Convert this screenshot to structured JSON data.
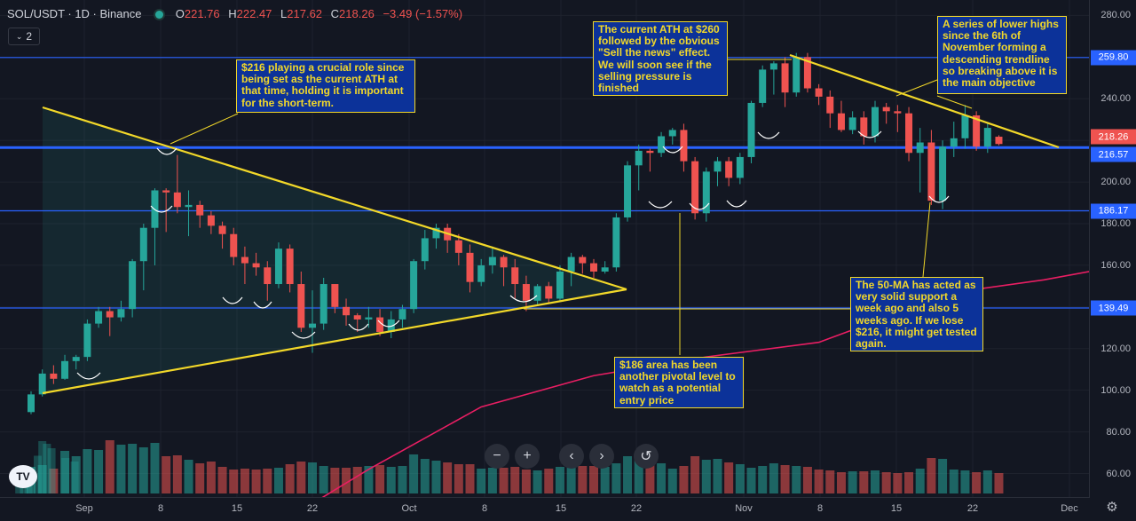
{
  "header": {
    "symbol": "SOL/USDT · 1D · Binance",
    "open_k": "O",
    "open": "221.76",
    "high_k": "H",
    "high": "222.47",
    "low_k": "L",
    "low": "217.62",
    "close_k": "C",
    "close": "218.26",
    "change": "−3.49 (−1.57%)",
    "indicator_count": "2"
  },
  "controls": {
    "zoom_out": "−",
    "zoom_in": "+",
    "scroll_left": "‹",
    "scroll_right": "›",
    "reset": "↺"
  },
  "colors": {
    "background": "#131722",
    "up": "#26a69a",
    "down": "#ef5350",
    "trendline": "#f2d829",
    "hline": "#2962ff",
    "ma": "#e91e63"
  },
  "annotations": [
    "$216 playing a crucial role since being set as the current ATH at that time, holding it is important for the short-term.",
    "The current ATH at $260 followed by the obvious \"Sell the news\" effect. We will soon see if the selling pressure is finished",
    "A series of lower highs since the 6th of November forming a descending trendline so breaking above it is the main objective",
    "The 50-MA has acted as very solid support a week ago and also 5 weeks ago. If we lose $216, it might get tested again.",
    "$186 area has been another pivotal level to watch as a potential entry price"
  ],
  "chart_data": {
    "type": "candlestick",
    "x_ticks": [
      "Sep",
      "8",
      "15",
      "22",
      "Oct",
      "8",
      "15",
      "22",
      "Nov",
      "8",
      "15",
      "22",
      "Dec"
    ],
    "y_ticks": [
      280,
      260,
      240,
      220,
      200,
      180,
      160,
      140,
      120,
      100,
      80,
      60
    ],
    "ylim": [
      53,
      287
    ],
    "price_labels": [
      {
        "value": "259.80",
        "color": "#2962ff"
      },
      {
        "value": "218.26",
        "color": "#ef5350"
      },
      {
        "value": "216.57",
        "color": "#2962ff"
      },
      {
        "value": "186.17",
        "color": "#2962ff"
      },
      {
        "value": "139.49",
        "color": "#2962ff"
      }
    ],
    "horizontal_levels": [
      259.8,
      216.57,
      186.17,
      139.49
    ],
    "ma_50": [
      [
        23,
        39
      ],
      [
        30,
        62
      ],
      [
        40,
        92
      ],
      [
        50,
        107
      ],
      [
        60,
        116
      ],
      [
        70,
        123
      ],
      [
        76,
        135
      ],
      [
        82,
        147
      ],
      [
        90,
        153
      ],
      [
        97,
        160
      ],
      [
        103,
        164
      ],
      [
        110,
        166
      ],
      [
        116,
        170
      ],
      [
        123,
        175
      ],
      [
        130,
        186
      ],
      [
        137,
        193
      ],
      [
        143,
        197
      ],
      [
        150,
        200
      ]
    ],
    "candles": [
      [
        0,
        89.5,
        98,
        99.5,
        88.5
      ],
      [
        1,
        98,
        108,
        110,
        97
      ],
      [
        2,
        108,
        105.5,
        112,
        103
      ],
      [
        3,
        105.5,
        114,
        117,
        105
      ],
      [
        4,
        114,
        116,
        117,
        110
      ],
      [
        5,
        116,
        132,
        134,
        114
      ],
      [
        6,
        132,
        138,
        140,
        130
      ],
      [
        7,
        138,
        135,
        140,
        126
      ],
      [
        8,
        135,
        139,
        143,
        133
      ],
      [
        9,
        139,
        162,
        163,
        135
      ],
      [
        10,
        162,
        178,
        180,
        148
      ],
      [
        11,
        178,
        196,
        197,
        160
      ],
      [
        12,
        196,
        195,
        197,
        176
      ],
      [
        13,
        195,
        188,
        213,
        185
      ],
      [
        14,
        188,
        189,
        196,
        174
      ],
      [
        15,
        189,
        184,
        191,
        178
      ],
      [
        16,
        184,
        179,
        186,
        175
      ],
      [
        17,
        179,
        175,
        181,
        168
      ],
      [
        18,
        175,
        164,
        178,
        160
      ],
      [
        19,
        164,
        161,
        169,
        151
      ],
      [
        20,
        161,
        159,
        166,
        155
      ],
      [
        21,
        159,
        151,
        162,
        143
      ],
      [
        22,
        151,
        168,
        171,
        149
      ],
      [
        23,
        168,
        151,
        170,
        147
      ],
      [
        24,
        151,
        130,
        157,
        128
      ],
      [
        25,
        130,
        132,
        148,
        118
      ],
      [
        26,
        132,
        151,
        154,
        129
      ],
      [
        27,
        151,
        140,
        151,
        137
      ],
      [
        28,
        140,
        136,
        144,
        131
      ],
      [
        29,
        136,
        134,
        137,
        128
      ],
      [
        30,
        134,
        135,
        140,
        130
      ],
      [
        31,
        135,
        128,
        139,
        126
      ],
      [
        32,
        128,
        134,
        138,
        125
      ],
      [
        33,
        134,
        139,
        141,
        130
      ],
      [
        34,
        139,
        162,
        163,
        137
      ],
      [
        35,
        162,
        173,
        177,
        158
      ],
      [
        36,
        173,
        178,
        180,
        168
      ],
      [
        37,
        178,
        172,
        180,
        166
      ],
      [
        38,
        172,
        166,
        175,
        160
      ],
      [
        39,
        166,
        152,
        170,
        147
      ],
      [
        40,
        152,
        160,
        163,
        150
      ],
      [
        41,
        160,
        164,
        169,
        156
      ],
      [
        42,
        164,
        159,
        165,
        150
      ],
      [
        43,
        159,
        151,
        163,
        144
      ],
      [
        44,
        151,
        143,
        155,
        138
      ],
      [
        45,
        143,
        150,
        151,
        141
      ],
      [
        46,
        150,
        144,
        152,
        142
      ],
      [
        47,
        144,
        157,
        160,
        143
      ],
      [
        48,
        157,
        164,
        166,
        150
      ],
      [
        49,
        164,
        161,
        165,
        156
      ],
      [
        50,
        161,
        157,
        163,
        154
      ],
      [
        51,
        157,
        159,
        162,
        156
      ],
      [
        52,
        159,
        183,
        185,
        157
      ],
      [
        53,
        183,
        208,
        210,
        181
      ],
      [
        54,
        208,
        215,
        218,
        196
      ],
      [
        55,
        215,
        214,
        216,
        205
      ],
      [
        56,
        214,
        222,
        224,
        212
      ],
      [
        57,
        222,
        225,
        226,
        218
      ],
      [
        58,
        225,
        210,
        228,
        205
      ],
      [
        59,
        210,
        185,
        212,
        182
      ],
      [
        60,
        185,
        205,
        207,
        181
      ],
      [
        61,
        205,
        210,
        212,
        198
      ],
      [
        62,
        210,
        202,
        212,
        198
      ],
      [
        63,
        202,
        212,
        214,
        199
      ],
      [
        64,
        212,
        238,
        239,
        209
      ],
      [
        65,
        238,
        254,
        256,
        236
      ],
      [
        66,
        254,
        257,
        258,
        242
      ],
      [
        67,
        257,
        243,
        260,
        236
      ],
      [
        68,
        243,
        260,
        262,
        241
      ],
      [
        69,
        260,
        245,
        262,
        243
      ],
      [
        70,
        245,
        241,
        247,
        237
      ],
      [
        71,
        241,
        233,
        244,
        226
      ],
      [
        72,
        233,
        225,
        239,
        224
      ],
      [
        73,
        225,
        231,
        234,
        223
      ],
      [
        74,
        231,
        222,
        234,
        218
      ],
      [
        75,
        222,
        236,
        239,
        219
      ],
      [
        76,
        236,
        234,
        238,
        228
      ],
      [
        77,
        234,
        233,
        237,
        224
      ],
      [
        78,
        233,
        214,
        236,
        210
      ],
      [
        79,
        214,
        219,
        226,
        195
      ],
      [
        80,
        219,
        191,
        225,
        189
      ],
      [
        81,
        191,
        217,
        220,
        187
      ],
      [
        82,
        217,
        221,
        229,
        212
      ],
      [
        83,
        221,
        232,
        237,
        216
      ],
      [
        84,
        232,
        217,
        234,
        215
      ],
      [
        85,
        217,
        226,
        228,
        214
      ],
      [
        86,
        221.76,
        218.26,
        222.47,
        217.62
      ]
    ],
    "volume": [
      30,
      32,
      28,
      48,
      42,
      50,
      49,
      60,
      55,
      56,
      52,
      57,
      42,
      43,
      38,
      34,
      36,
      30,
      27,
      28,
      27,
      28,
      29,
      33,
      36,
      35,
      31,
      29,
      29,
      30,
      31,
      32,
      30,
      31,
      44,
      39,
      37,
      35,
      33,
      33,
      28,
      29,
      29,
      30,
      27,
      26,
      28,
      30,
      29,
      31,
      31,
      30,
      34,
      42,
      44,
      40,
      34,
      28,
      31,
      42,
      38,
      39,
      35,
      33,
      29,
      31,
      34,
      32,
      31,
      30,
      27,
      26,
      24,
      25,
      25,
      26,
      24,
      23,
      24,
      28,
      40,
      39,
      27,
      26,
      24,
      26,
      23
    ]
  }
}
